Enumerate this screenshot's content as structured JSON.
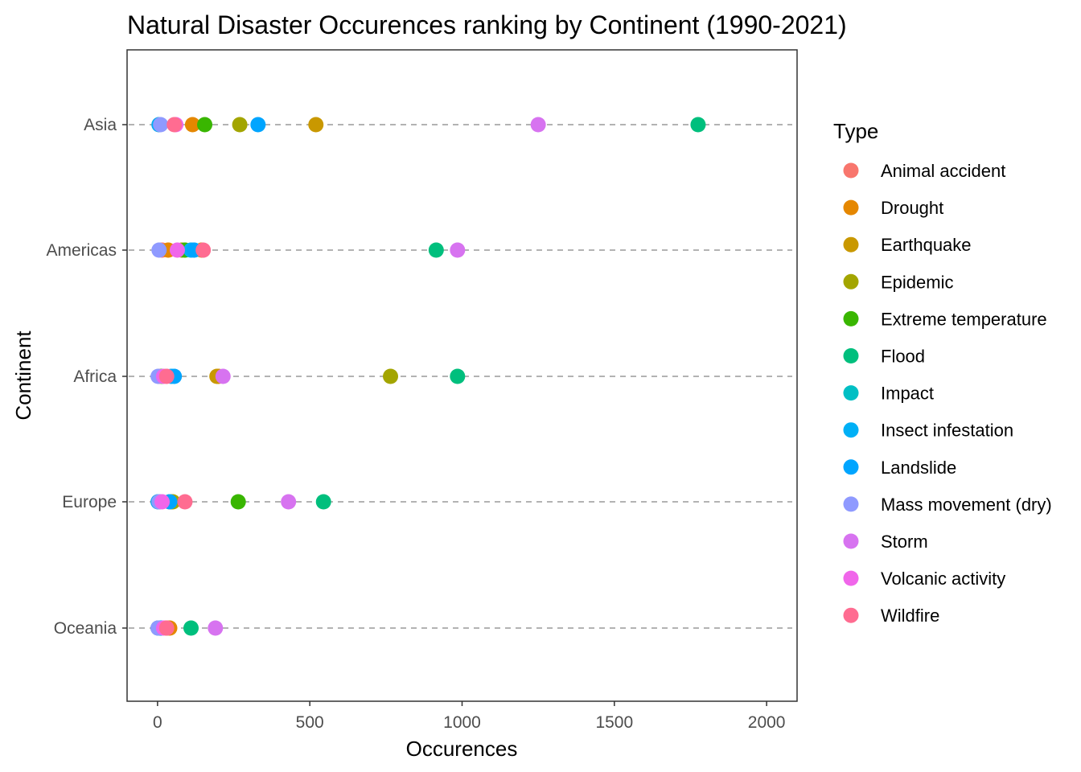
{
  "chart_data": {
    "type": "scatter",
    "title": "Natural Disaster Occurences ranking by Continent (1990-2021)",
    "xlabel": "Occurences",
    "ylabel": "Continent",
    "xlim": [
      -100,
      2100
    ],
    "x_ticks": [
      "0",
      "500",
      "1000",
      "1500",
      "2000"
    ],
    "x_tick_values": [
      0,
      500,
      1000,
      1500,
      2000
    ],
    "categories": [
      "Asia",
      "Americas",
      "Africa",
      "Europe",
      "Oceania"
    ],
    "grid": "dashed horizontal lines per continent",
    "legend": {
      "title": "Type",
      "position": "right",
      "entries": [
        {
          "name": "Animal accident",
          "color": "#F8766D"
        },
        {
          "name": "Drought",
          "color": "#E58700"
        },
        {
          "name": "Earthquake",
          "color": "#C99800"
        },
        {
          "name": "Epidemic",
          "color": "#A3A500"
        },
        {
          "name": "Extreme temperature",
          "color": "#39B600"
        },
        {
          "name": "Flood",
          "color": "#00BF7D"
        },
        {
          "name": "Impact",
          "color": "#00BFC4"
        },
        {
          "name": "Insect infestation",
          "color": "#00B0F6"
        },
        {
          "name": "Landslide",
          "color": "#00A5FF"
        },
        {
          "name": "Mass movement (dry)",
          "color": "#8F9AFF"
        },
        {
          "name": "Storm",
          "color": "#D773F0"
        },
        {
          "name": "Volcanic activity",
          "color": "#F066EA"
        },
        {
          "name": "Wildfire",
          "color": "#FF6C91"
        }
      ]
    },
    "series": [
      {
        "name": "Animal accident",
        "values": [
          5,
          15,
          5,
          2,
          2
        ]
      },
      {
        "name": "Drought",
        "values": [
          115,
          35,
          200,
          40,
          40
        ]
      },
      {
        "name": "Earthquake",
        "values": [
          520,
          145,
          195,
          45,
          30
        ]
      },
      {
        "name": "Epidemic",
        "values": [
          270,
          80,
          765,
          50,
          5
        ]
      },
      {
        "name": "Extreme temperature",
        "values": [
          155,
          90,
          15,
          265,
          10
        ]
      },
      {
        "name": "Flood",
        "values": [
          1775,
          915,
          985,
          545,
          110
        ]
      },
      {
        "name": "Impact",
        "values": [
          null,
          null,
          null,
          5,
          null
        ]
      },
      {
        "name": "Insect infestation",
        "values": [
          5,
          110,
          45,
          2,
          2
        ]
      },
      {
        "name": "Landslide",
        "values": [
          330,
          120,
          55,
          40,
          10
        ]
      },
      {
        "name": "Mass movement (dry)",
        "values": [
          10,
          5,
          2,
          5,
          2
        ]
      },
      {
        "name": "Storm",
        "values": [
          1250,
          985,
          215,
          430,
          190
        ]
      },
      {
        "name": "Volcanic activity",
        "values": [
          60,
          65,
          20,
          15,
          20
        ]
      },
      {
        "name": "Wildfire",
        "values": [
          55,
          150,
          30,
          90,
          30
        ]
      }
    ]
  }
}
